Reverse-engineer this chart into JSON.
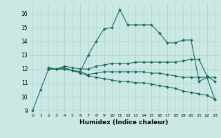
{
  "xlabel": "Humidex (Indice chaleur)",
  "background_color": "#cce8e4",
  "grid_color": "#aad4cc",
  "line_color": "#1a6b5a",
  "xlim": [
    -0.5,
    23.5
  ],
  "ylim": [
    8.8,
    16.7
  ],
  "yticks": [
    9,
    10,
    11,
    12,
    13,
    14,
    15,
    16
  ],
  "xticks": [
    0,
    1,
    2,
    3,
    4,
    5,
    6,
    7,
    8,
    9,
    10,
    11,
    12,
    13,
    14,
    15,
    16,
    17,
    18,
    19,
    20,
    21,
    22,
    23
  ],
  "lines": [
    {
      "x": [
        0,
        1,
        2,
        3,
        4,
        5,
        6,
        7,
        8,
        9,
        10,
        11,
        12,
        13,
        14,
        15,
        16,
        17,
        18,
        19,
        20,
        21,
        22,
        23
      ],
      "y": [
        9.0,
        10.5,
        12.0,
        12.0,
        12.1,
        11.9,
        11.8,
        13.0,
        14.0,
        14.9,
        15.0,
        16.3,
        15.2,
        15.2,
        15.2,
        15.2,
        14.6,
        13.9,
        13.9,
        14.1,
        14.1,
        11.1,
        11.4,
        11.4
      ]
    },
    {
      "x": [
        2,
        3,
        4,
        5,
        6,
        7,
        8,
        9,
        10,
        11,
        12,
        13,
        14,
        15,
        16,
        17,
        18,
        19,
        20,
        21,
        22,
        23
      ],
      "y": [
        12.1,
        12.0,
        12.2,
        12.1,
        12.0,
        12.0,
        12.2,
        12.3,
        12.4,
        12.4,
        12.4,
        12.5,
        12.5,
        12.5,
        12.5,
        12.5,
        12.5,
        12.6,
        12.7,
        12.7,
        11.5,
        11.1
      ]
    },
    {
      "x": [
        2,
        3,
        4,
        5,
        6,
        7,
        8,
        9,
        10,
        11,
        12,
        13,
        14,
        15,
        16,
        17,
        18,
        19,
        20,
        21,
        22,
        23
      ],
      "y": [
        12.0,
        12.0,
        12.0,
        11.9,
        11.8,
        11.6,
        11.7,
        11.8,
        11.8,
        11.8,
        11.8,
        11.8,
        11.8,
        11.7,
        11.7,
        11.6,
        11.5,
        11.4,
        11.4,
        11.4,
        11.4,
        9.8
      ]
    },
    {
      "x": [
        2,
        3,
        4,
        5,
        6,
        7,
        8,
        9,
        10,
        11,
        12,
        13,
        14,
        15,
        16,
        17,
        18,
        19,
        20,
        21,
        22,
        23
      ],
      "y": [
        12.0,
        12.0,
        12.0,
        11.9,
        11.7,
        11.5,
        11.4,
        11.3,
        11.2,
        11.1,
        11.1,
        11.0,
        11.0,
        10.9,
        10.8,
        10.7,
        10.6,
        10.4,
        10.3,
        10.2,
        10.1,
        9.8
      ]
    }
  ]
}
